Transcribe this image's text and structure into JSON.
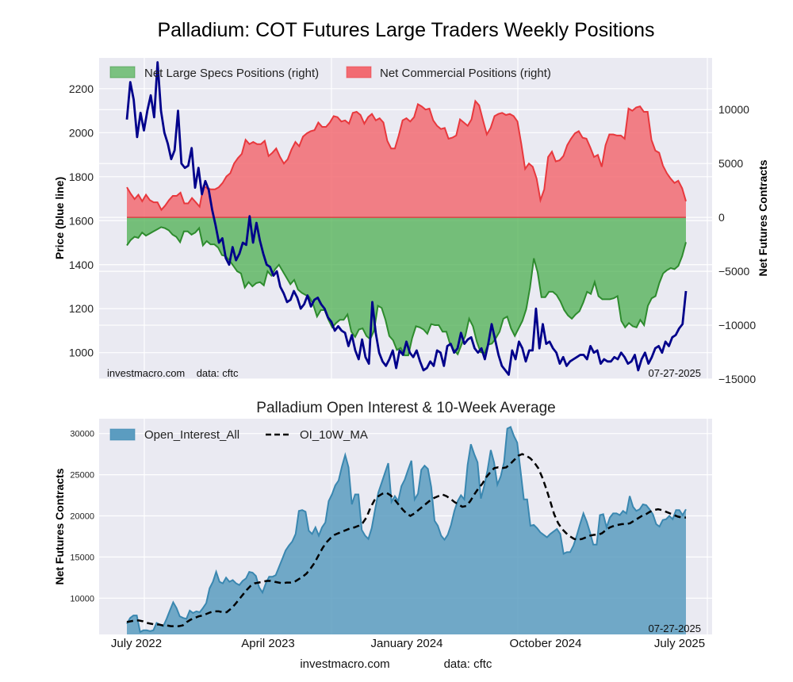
{
  "chart_data": [
    {
      "type": "area",
      "title": "Palladium: COT Futures Large Traders Weekly Positions",
      "ylabel_left": "Price (blue line)",
      "ylabel_right": "Net Futures Contracts",
      "left_ylim": [
        880,
        2340
      ],
      "left_ticks": [
        1000,
        1200,
        1400,
        1600,
        1800,
        2000,
        2200
      ],
      "right_ylim": [
        -15000,
        14800
      ],
      "right_ticks": [
        -15000,
        -10000,
        -5000,
        0,
        5000,
        10000
      ],
      "right_tick_labels": [
        "−15000",
        "−10000",
        "−5000",
        "0",
        "5000",
        "10000"
      ],
      "x_range": [
        "2022-06",
        "2025-07-27"
      ],
      "grid": true,
      "legend_position": "top-left",
      "legend": [
        "Net Large Specs Positions (right)",
        "Net Commercial Positions (right)"
      ],
      "watermark_left": "investmacro.com    data: cftc",
      "date_stamp": "07-27-2025",
      "series": [
        {
          "name": "Net Large Specs Positions (right)",
          "axis": "right",
          "color": "#2e8b2e",
          "fill": "#4caf50",
          "values": [
            -2600,
            -2100,
            -1800,
            -1900,
            -1400,
            -1700,
            -1500,
            -1300,
            -1100,
            -900,
            -1000,
            -1200,
            -1600,
            -1800,
            -2300,
            -1300,
            -1300,
            -1600,
            -1400,
            -1000,
            -2600,
            -2200,
            -2500,
            -2500,
            -2800,
            -3500,
            -3600,
            -4000,
            -4500,
            -5000,
            -5200,
            -6500,
            -6000,
            -6400,
            -6100,
            -6000,
            -6300,
            -5000,
            -5400,
            -4800,
            -4400,
            -5000,
            -5600,
            -6200,
            -5800,
            -6700,
            -7000,
            -7200,
            -7400,
            -8100,
            -9200,
            -8600,
            -8600,
            -9500,
            -10200,
            -9800,
            -9500,
            -9500,
            -9000,
            -10600,
            -11100,
            -10400,
            -10300,
            -11000,
            -11300,
            -10500,
            -8200,
            -8400,
            -9500,
            -11000,
            -11400,
            -12300,
            -12100,
            -12800,
            -12800,
            -11200,
            -10100,
            -10200,
            -10400,
            -10800,
            -9900,
            -10000,
            -10000,
            -10600,
            -10600,
            -11800,
            -12300,
            -12700,
            -11800,
            -11000,
            -9400,
            -10100,
            -11500,
            -12500,
            -12600,
            -11800,
            -11700,
            -11200,
            -10600,
            -9400,
            -9200,
            -10300,
            -11000,
            -10300,
            -9600,
            -8500,
            -6500,
            -3800,
            -5100,
            -7400,
            -7400,
            -6900,
            -6900,
            -7200,
            -7800,
            -8600,
            -9100,
            -9400,
            -9000,
            -8700,
            -7900,
            -6900,
            -7100,
            -6000,
            -7300,
            -7600,
            -7600,
            -7600,
            -7500,
            -7300,
            -9600,
            -10200,
            -9800,
            -10100,
            -10200,
            -9500,
            -10000,
            -8200,
            -7500,
            -7300,
            -6100,
            -5200,
            -4900,
            -4700,
            -4800,
            -4500,
            -3600,
            -2300
          ]
        },
        {
          "name": "Net Commercial Positions (right)",
          "axis": "right",
          "color": "#e8383d",
          "fill": "#f26b72",
          "values": [
            2800,
            2200,
            1700,
            2100,
            1500,
            2100,
            1600,
            1400,
            1400,
            700,
            1100,
            1600,
            2000,
            2000,
            2300,
            1300,
            1300,
            1800,
            1400,
            1000,
            2900,
            2700,
            2600,
            2600,
            2800,
            3200,
            3800,
            4100,
            5000,
            5500,
            5900,
            7200,
            6800,
            7000,
            6800,
            6800,
            7100,
            5700,
            6000,
            6400,
            5600,
            5000,
            5400,
            6300,
            7000,
            6600,
            7500,
            7800,
            8000,
            8100,
            8800,
            8400,
            8400,
            8800,
            9400,
            9300,
            8900,
            9000,
            8700,
            9700,
            9800,
            9500,
            8700,
            9300,
            9600,
            9000,
            9200,
            8800,
            7100,
            6400,
            6400,
            7600,
            9000,
            9200,
            8900,
            9300,
            10500,
            10300,
            10000,
            10100,
            9000,
            8500,
            8200,
            8300,
            7300,
            7400,
            7600,
            9100,
            8800,
            8500,
            9100,
            10800,
            10400,
            9000,
            7700,
            8300,
            9400,
            9600,
            9700,
            9500,
            9600,
            9400,
            8900,
            6800,
            4500,
            5000,
            4700,
            3600,
            1600,
            2600,
            5600,
            6100,
            5200,
            5300,
            5700,
            6700,
            7300,
            7800,
            8000,
            7400,
            7300,
            6500,
            5600,
            5800,
            4700,
            6700,
            7700,
            7700,
            7600,
            7600,
            7300,
            10100,
            9900,
            10200,
            10300,
            9800,
            9800,
            7200,
            6200,
            6000,
            4800,
            4100,
            3600,
            3200,
            3400,
            2700,
            1500
          ]
        },
        {
          "name": "Price (blue line)",
          "axis": "left",
          "color": "#00008b",
          "values": [
            2060,
            2230,
            2150,
            1980,
            2090,
            2010,
            2100,
            2170,
            2070,
            2320,
            2100,
            2000,
            1950,
            1880,
            1920,
            2100,
            1860,
            1840,
            1850,
            1930,
            1750,
            1840,
            1720,
            1780,
            1740,
            1650,
            1580,
            1500,
            1520,
            1430,
            1400,
            1480,
            1420,
            1450,
            1500,
            1490,
            1620,
            1500,
            1590,
            1510,
            1450,
            1400,
            1390,
            1350,
            1370,
            1300,
            1270,
            1230,
            1240,
            1280,
            1250,
            1200,
            1220,
            1260,
            1210,
            1240,
            1250,
            1220,
            1200,
            1160,
            1140,
            1100,
            1120,
            1100,
            1090,
            1030,
            1080,
            1010,
            970,
            1060,
            980,
            950,
            1230,
            1090,
            1000,
            960,
            940,
            970,
            1010,
            930,
            1010,
            990,
            1050,
            1000,
            980,
            1010,
            960,
            920,
            930,
            960,
            940,
            1010,
            1000,
            940,
            1030,
            1040,
            1000,
            1020,
            1090,
            1040,
            1060,
            1070,
            1020,
            1000,
            1020,
            970,
            1040,
            1130,
            1060,
            990,
            940,
            920,
            900,
            1010,
            970,
            1050,
            1020,
            960,
            1010,
            1010,
            1200,
            1020,
            1130,
            1040,
            1050,
            1020,
            1000,
            950,
            980,
            940,
            960,
            970,
            980,
            990,
            990,
            970,
            1030,
            1000,
            1010,
            950,
            970,
            960,
            960,
            980,
            970,
            1000,
            980,
            950,
            960,
            990,
            920,
            970,
            1000,
            950,
            980,
            1020,
            1030,
            1000,
            1050,
            1030,
            1070,
            1080,
            1110,
            1130,
            1280
          ]
        }
      ]
    },
    {
      "type": "area",
      "title": "Palladium Open Interest & 10-Week Average",
      "ylabel": "Net Futures Contracts",
      "ylim": [
        5600,
        31800
      ],
      "y_ticks": [
        10000,
        15000,
        20000,
        25000,
        30000
      ],
      "x_ticks": [
        "July 2022",
        "April 2023",
        "January 2024",
        "October 2024",
        "July 2025"
      ],
      "grid": true,
      "legend_position": "top-left",
      "legend": [
        "Open_Interest_All",
        "OI_10W_MA"
      ],
      "date_stamp": "07-27-2025",
      "series": [
        {
          "name": "Open_Interest_All",
          "color": "#3a87b0",
          "fill": "#5b9cc0",
          "values": [
            6900,
            7600,
            7900,
            7900,
            5900,
            6100,
            6100,
            6000,
            6100,
            7000,
            6800,
            6600,
            7500,
            8500,
            9500,
            8800,
            7800,
            7600,
            7500,
            8500,
            8200,
            8400,
            8300,
            8800,
            9400,
            11200,
            12000,
            13200,
            12000,
            11800,
            12500,
            12000,
            12200,
            11800,
            11600,
            12100,
            12400,
            13200,
            13100,
            12700,
            11300,
            10700,
            11800,
            12600,
            12600,
            12800,
            13800,
            14800,
            15800,
            16400,
            16900,
            17800,
            20600,
            20700,
            20500,
            18200,
            17800,
            18600,
            17600,
            18600,
            19200,
            21800,
            22600,
            23700,
            24300,
            26000,
            27400,
            25900,
            21400,
            22600,
            22600,
            18300,
            17600,
            17200,
            18500,
            20700,
            22800,
            24000,
            25200,
            26400,
            21700,
            22400,
            21800,
            23600,
            24400,
            25600,
            26700,
            22000,
            22700,
            25600,
            26100,
            25700,
            23500,
            19400,
            18800,
            17600,
            17100,
            17700,
            18900,
            20600,
            21800,
            22500,
            22000,
            26200,
            28700,
            27500,
            26500,
            22100,
            23600,
            25500,
            28000,
            26500,
            23800,
            24800,
            26500,
            30600,
            30800,
            29700,
            28900,
            25500,
            22000,
            22000,
            18800,
            18900,
            18500,
            18000,
            17700,
            17400,
            17800,
            18100,
            18400,
            17800,
            15400,
            15600,
            15600,
            16400,
            17600,
            19000,
            20300,
            19300,
            18000,
            16500,
            16500,
            20100,
            20200,
            18600,
            19800,
            20300,
            20300,
            20100,
            20600,
            20300,
            22400,
            21100,
            20600,
            20800,
            21400,
            21300,
            20800,
            20200,
            19000,
            18700,
            19500,
            19600,
            20000,
            19600,
            20700,
            20700,
            20100,
            20800
          ]
        },
        {
          "name": "OI_10W_MA",
          "color": "#000000",
          "style": "dashed",
          "values": [
            7100,
            7200,
            7300,
            7300,
            7200,
            7000,
            6900,
            6800,
            6800,
            6700,
            6700,
            6600,
            6600,
            6600,
            6700,
            7100,
            7400,
            7600,
            7800,
            7900,
            8100,
            8300,
            8400,
            8400,
            8300,
            8300,
            8700,
            9200,
            9800,
            10400,
            11000,
            11500,
            11800,
            11900,
            12000,
            12100,
            12100,
            12000,
            11900,
            11800,
            11900,
            11900,
            12000,
            12300,
            12600,
            13000,
            13600,
            14300,
            15200,
            16100,
            16800,
            17300,
            17700,
            17900,
            18100,
            18300,
            18500,
            18600,
            18800,
            19100,
            19800,
            21000,
            21900,
            22400,
            22700,
            22800,
            22500,
            22000,
            21400,
            20800,
            20300,
            20000,
            20300,
            20700,
            21100,
            21500,
            21900,
            22200,
            22400,
            22600,
            22400,
            22100,
            21700,
            21400,
            21100,
            21200,
            21800,
            22600,
            23300,
            23900,
            24700,
            25300,
            25800,
            25900,
            25800,
            25900,
            26300,
            26800,
            27300,
            27500,
            27300,
            27000,
            26500,
            25800,
            24700,
            23300,
            21800,
            20200,
            19100,
            18400,
            17900,
            17500,
            17200,
            17100,
            17200,
            17400,
            17600,
            17700,
            17700,
            17900,
            18300,
            18600,
            18800,
            18900,
            19000,
            19000,
            19100,
            19400,
            19700,
            20000,
            20200,
            20500,
            20700,
            20800,
            20700,
            20500,
            20300,
            20100,
            19900,
            19800,
            19800
          ]
        }
      ]
    }
  ],
  "footer": {
    "site": "investmacro.com",
    "source": "data: cftc"
  }
}
